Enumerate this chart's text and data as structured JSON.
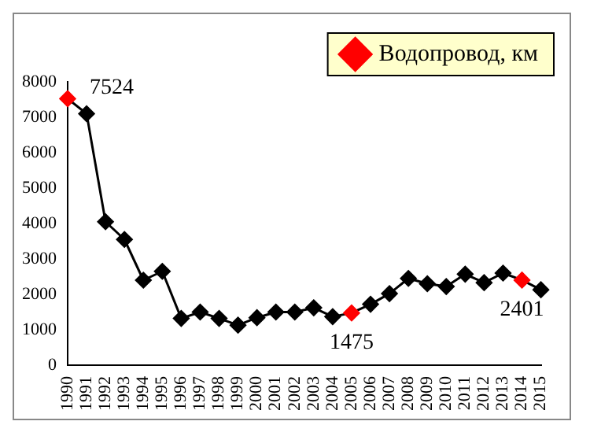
{
  "chart_data": {
    "type": "line",
    "categories": [
      "1990",
      "1991",
      "1992",
      "1993",
      "1994",
      "1995",
      "1996",
      "1997",
      "1998",
      "1999",
      "2000",
      "2001",
      "2002",
      "2003",
      "2004",
      "2005",
      "2006",
      "2007",
      "2008",
      "2009",
      "2010",
      "2011",
      "2012",
      "2013",
      "2014",
      "2015"
    ],
    "series": [
      {
        "name": "Водопровод, км",
        "color": "#000000",
        "colors": [
          "#ff0000",
          "#000000",
          "#000000",
          "#000000",
          "#000000",
          "#000000",
          "#000000",
          "#000000",
          "#000000",
          "#000000",
          "#000000",
          "#000000",
          "#000000",
          "#000000",
          "#000000",
          "#ff0000",
          "#000000",
          "#000000",
          "#000000",
          "#000000",
          "#000000",
          "#000000",
          "#000000",
          "#000000",
          "#ff0000",
          "#000000"
        ],
        "values": [
          7524,
          7100,
          4050,
          3550,
          2400,
          2650,
          1320,
          1500,
          1320,
          1130,
          1340,
          1500,
          1500,
          1620,
          1370,
          1475,
          1720,
          2020,
          2450,
          2300,
          2220,
          2570,
          2330,
          2600,
          2401,
          2130
        ],
        "value_labels": [
          "7524",
          null,
          null,
          null,
          null,
          null,
          null,
          null,
          null,
          null,
          null,
          null,
          null,
          null,
          null,
          "1475",
          null,
          null,
          null,
          null,
          null,
          null,
          null,
          null,
          "2401",
          null
        ]
      }
    ],
    "ylim": [
      0,
      8000
    ],
    "yticks": [
      0,
      1000,
      2000,
      3000,
      4000,
      5000,
      6000,
      7000,
      8000
    ],
    "grid": false,
    "legend": "top right",
    "marker": "diamond",
    "line_style": "solid"
  }
}
